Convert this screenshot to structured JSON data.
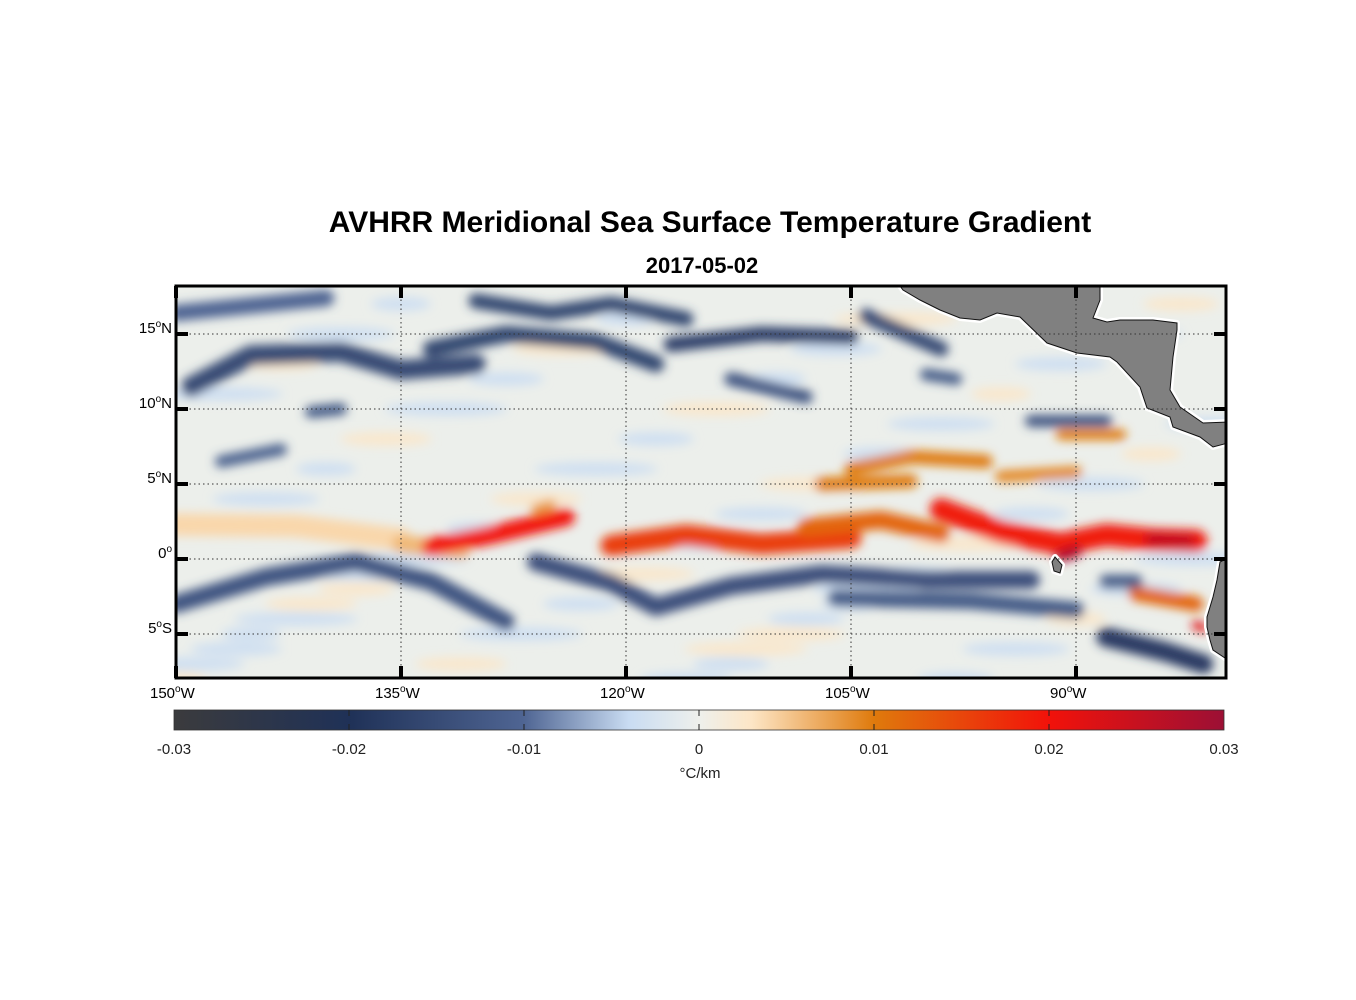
{
  "title": "AVHRR Meridional Sea Surface Temperature Gradient",
  "subtitle": "2017-05-02",
  "chart_data": {
    "type": "heatmap",
    "projection": "lon-lat",
    "lon_range": [
      -150,
      -80
    ],
    "lat_range": [
      -8,
      18
    ],
    "x_ticks": [
      {
        "v": -150,
        "label": "150",
        "suffix": "W"
      },
      {
        "v": -135,
        "label": "135",
        "suffix": "W"
      },
      {
        "v": -120,
        "label": "120",
        "suffix": "W"
      },
      {
        "v": -105,
        "label": "105",
        "suffix": "W"
      },
      {
        "v": -90,
        "label": "90",
        "suffix": "W"
      }
    ],
    "y_ticks": [
      {
        "v": 15,
        "label": "15",
        "suffix": "N"
      },
      {
        "v": 10,
        "label": "10",
        "suffix": "N"
      },
      {
        "v": 5,
        "label": "5",
        "suffix": "N"
      },
      {
        "v": 0,
        "label": "0",
        "suffix": ""
      },
      {
        "v": -5,
        "label": "5",
        "suffix": "S"
      }
    ],
    "grid": true,
    "colorbar": {
      "range": [
        -0.03,
        0.03
      ],
      "ticks": [
        "-0.03",
        "-0.02",
        "-0.01",
        "0",
        "0.01",
        "0.02",
        "0.03"
      ],
      "tick_values": [
        -0.03,
        -0.02,
        -0.01,
        0,
        0.01,
        0.02,
        0.03
      ],
      "label": "°C/km",
      "stops": [
        [
          -0.03,
          "#3b3b3d"
        ],
        [
          -0.02,
          "#1f3157"
        ],
        [
          -0.01,
          "#4f6593"
        ],
        [
          -0.004,
          "#c9dcf2"
        ],
        [
          0,
          "#eef0ec"
        ],
        [
          0.003,
          "#fde6c6"
        ],
        [
          0.01,
          "#df7a0c"
        ],
        [
          0.02,
          "#f2120a"
        ],
        [
          0.03,
          "#9c1035"
        ]
      ]
    },
    "features": [
      {
        "v": 0.004,
        "w": 1.5,
        "pts": [
          [
            -150,
            2.3
          ],
          [
            -142,
            2.2
          ],
          [
            -135,
            1.3
          ]
        ]
      },
      {
        "v": 0.006,
        "w": 1.2,
        "pts": [
          [
            -135,
            1.0
          ],
          [
            -131,
            0.6
          ]
        ]
      },
      {
        "v": 0.02,
        "w": 1.2,
        "pts": [
          [
            -133,
            0.8
          ],
          [
            -129,
            1.6
          ],
          [
            -124,
            2.8
          ]
        ]
      },
      {
        "v": 0.016,
        "w": 1.4,
        "pts": [
          [
            -121,
            0.9
          ],
          [
            -116,
            1.6
          ],
          [
            -111,
            1.0
          ],
          [
            -105,
            1.4
          ]
        ]
      },
      {
        "v": 0.012,
        "w": 1.2,
        "pts": [
          [
            -108,
            2.1
          ],
          [
            -103,
            2.6
          ],
          [
            -99,
            1.7
          ]
        ]
      },
      {
        "v": 0.019,
        "w": 1.5,
        "pts": [
          [
            -99,
            3.3
          ],
          [
            -95,
            1.8
          ],
          [
            -91,
            1.0
          ],
          [
            -88,
            1.6
          ],
          [
            -85,
            1.3
          ],
          [
            -82,
            1.2
          ]
        ]
      },
      {
        "v": 0.028,
        "w": 0.8,
        "pts": [
          [
            -91,
            0.2
          ],
          [
            -90,
            0.5
          ]
        ]
      },
      {
        "v": 0.026,
        "w": 0.8,
        "pts": [
          [
            -85,
            1.3
          ],
          [
            -82.5,
            1.2
          ]
        ]
      },
      {
        "v": 0.01,
        "w": 0.9,
        "pts": [
          [
            -105,
            6
          ],
          [
            -101,
            6.8
          ],
          [
            -96,
            6.5
          ]
        ]
      },
      {
        "v": 0.01,
        "w": 0.9,
        "pts": [
          [
            -107,
            5
          ],
          [
            -101,
            5.2
          ]
        ]
      },
      {
        "v": 0.009,
        "w": 0.8,
        "pts": [
          [
            -95,
            5.5
          ],
          [
            -90,
            5.8
          ]
        ]
      },
      {
        "v": 0.01,
        "w": 0.7,
        "pts": [
          [
            -91,
            8.3
          ],
          [
            -87,
            8.3
          ]
        ]
      },
      {
        "v": 0.012,
        "w": 1,
        "pts": [
          [
            -86,
            -2.3
          ],
          [
            -82,
            -3
          ]
        ]
      },
      {
        "v": 0.022,
        "w": 0.6,
        "pts": [
          [
            -82,
            -4.4
          ],
          [
            -81.5,
            -4.6
          ]
        ]
      },
      {
        "v": 0.008,
        "w": 0.7,
        "pts": [
          [
            -126,
            3.3
          ],
          [
            -125,
            3.6
          ]
        ]
      },
      {
        "v": -0.013,
        "w": 1.2,
        "pts": [
          [
            -150,
            -3
          ],
          [
            -144,
            -1.2
          ],
          [
            -138,
            -0.2
          ],
          [
            -133,
            -1.5
          ],
          [
            -128,
            -4.2
          ]
        ]
      },
      {
        "v": -0.014,
        "w": 1.2,
        "pts": [
          [
            -126,
            -0.2
          ],
          [
            -121,
            -1.6
          ],
          [
            -118,
            -3.2
          ],
          [
            -113,
            -1.8
          ],
          [
            -107,
            -1.0
          ],
          [
            -100,
            -1.4
          ],
          [
            -93,
            -1.4
          ]
        ]
      },
      {
        "v": -0.012,
        "w": 1.1,
        "pts": [
          [
            -106,
            -2.6
          ],
          [
            -97,
            -2.8
          ],
          [
            -90,
            -3.4
          ]
        ]
      },
      {
        "v": -0.018,
        "w": 1.3,
        "pts": [
          [
            -88,
            -5.2
          ],
          [
            -84,
            -6.2
          ],
          [
            -81.5,
            -7
          ]
        ]
      },
      {
        "v": -0.012,
        "w": 0.9,
        "pts": [
          [
            -88,
            -1.5
          ],
          [
            -86,
            -1.5
          ]
        ]
      },
      {
        "v": -0.015,
        "w": 1.3,
        "pts": [
          [
            -149,
            11.5
          ],
          [
            -145,
            13.6
          ],
          [
            -139,
            13.8
          ],
          [
            -135,
            12.6
          ],
          [
            -130,
            13
          ]
        ]
      },
      {
        "v": -0.01,
        "w": 1.1,
        "pts": [
          [
            -150,
            16.4
          ],
          [
            -140,
            17.4
          ]
        ]
      },
      {
        "v": -0.016,
        "w": 1.1,
        "pts": [
          [
            -133,
            14
          ],
          [
            -128,
            15
          ],
          [
            -122,
            14.5
          ],
          [
            -118,
            13
          ]
        ]
      },
      {
        "v": -0.016,
        "w": 1,
        "pts": [
          [
            -130,
            17.2
          ],
          [
            -125,
            16.4
          ],
          [
            -121,
            17
          ],
          [
            -116,
            16
          ]
        ]
      },
      {
        "v": -0.017,
        "w": 1,
        "pts": [
          [
            -117,
            14.3
          ],
          [
            -111,
            15
          ],
          [
            -105,
            14.8
          ]
        ]
      },
      {
        "v": -0.013,
        "w": 0.9,
        "pts": [
          [
            -113,
            12
          ],
          [
            -108,
            10.8
          ]
        ]
      },
      {
        "v": -0.015,
        "w": 1,
        "pts": [
          [
            -104,
            16.2
          ],
          [
            -99,
            14
          ]
        ]
      },
      {
        "v": -0.012,
        "w": 0.8,
        "pts": [
          [
            -141,
            9.8
          ],
          [
            -139,
            10
          ]
        ]
      },
      {
        "v": -0.013,
        "w": 0.8,
        "pts": [
          [
            -93,
            9.2
          ],
          [
            -88,
            9.2
          ]
        ]
      },
      {
        "v": -0.012,
        "w": 0.8,
        "pts": [
          [
            -100,
            12.3
          ],
          [
            -98,
            12
          ]
        ]
      },
      {
        "v": -0.011,
        "w": 0.8,
        "pts": [
          [
            -147,
            6.5
          ],
          [
            -143,
            7.3
          ]
        ]
      }
    ]
  }
}
